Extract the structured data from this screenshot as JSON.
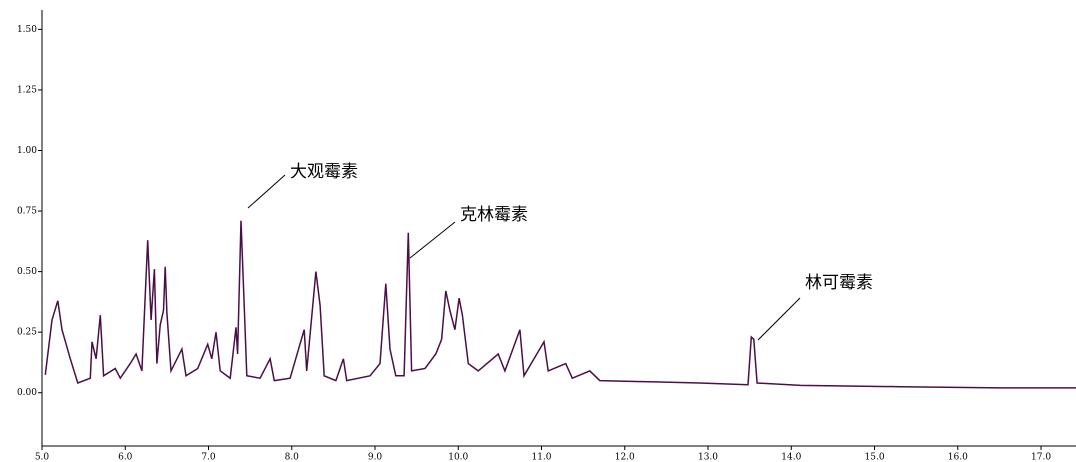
{
  "chart_data": {
    "type": "line",
    "color": "#4a1046",
    "xlim": [
      5.0,
      17.42
    ],
    "ylim": [
      -0.22,
      1.58
    ],
    "xticks": [
      {
        "value": 5,
        "label": "5.0"
      },
      {
        "value": 6,
        "label": "6.0"
      },
      {
        "value": 7,
        "label": "7.0"
      },
      {
        "value": 8,
        "label": "8.0"
      },
      {
        "value": 9,
        "label": "9.0"
      },
      {
        "value": 10,
        "label": "10.0"
      },
      {
        "value": 11,
        "label": "11.0"
      },
      {
        "value": 12,
        "label": "12.0"
      },
      {
        "value": 13,
        "label": "13.0"
      },
      {
        "value": 14,
        "label": "14.0"
      },
      {
        "value": 15,
        "label": "15.0"
      },
      {
        "value": 16,
        "label": "16.0"
      },
      {
        "value": 17,
        "label": "17.0"
      }
    ],
    "yticks": [
      {
        "value": 0,
        "label": "0.00"
      },
      {
        "value": 0.25,
        "label": "0.25"
      },
      {
        "value": 0.5,
        "label": "0.50"
      },
      {
        "value": 0.75,
        "label": "0.75"
      },
      {
        "value": 1,
        "label": "1.00"
      },
      {
        "value": 1.25,
        "label": "1.25"
      },
      {
        "value": 1.5,
        "label": "1.50"
      }
    ],
    "annotations": [
      "大观霉素",
      "克林霉素",
      "林可霉素"
    ],
    "x": [
      5.04,
      5.12,
      5.19,
      5.24,
      5.34,
      5.43,
      5.58,
      5.6,
      5.65,
      5.7,
      5.74,
      5.88,
      5.94,
      6.06,
      6.13,
      6.2,
      6.27,
      6.31,
      6.35,
      6.38,
      6.42,
      6.46,
      6.48,
      6.5,
      6.55,
      6.68,
      6.73,
      6.87,
      6.99,
      7.04,
      7.09,
      7.14,
      7.26,
      7.33,
      7.35,
      7.39,
      7.43,
      7.46,
      7.62,
      7.74,
      7.79,
      7.98,
      8.15,
      8.18,
      8.29,
      8.34,
      8.39,
      8.53,
      8.62,
      8.66,
      8.94,
      9.06,
      9.13,
      9.18,
      9.25,
      9.35,
      9.4,
      9.44,
      9.6,
      9.73,
      9.8,
      9.85,
      9.9,
      9.96,
      10.01,
      10.05,
      10.12,
      10.24,
      10.48,
      10.56,
      10.74,
      10.79,
      11.03,
      11.08,
      11.29,
      11.37,
      11.58,
      11.7,
      12.3,
      12.9,
      13.48,
      13.52,
      13.55,
      13.59,
      14.11,
      15.31,
      16.51,
      17.42
    ],
    "values": [
      0.074,
      0.3,
      0.38,
      0.26,
      0.14,
      0.04,
      0.06,
      0.21,
      0.14,
      0.32,
      0.07,
      0.1,
      0.06,
      0.12,
      0.16,
      0.09,
      0.63,
      0.3,
      0.51,
      0.12,
      0.28,
      0.34,
      0.52,
      0.33,
      0.09,
      0.18,
      0.07,
      0.1,
      0.2,
      0.14,
      0.25,
      0.09,
      0.06,
      0.27,
      0.16,
      0.71,
      0.35,
      0.07,
      0.06,
      0.14,
      0.05,
      0.06,
      0.26,
      0.09,
      0.5,
      0.36,
      0.07,
      0.05,
      0.14,
      0.05,
      0.07,
      0.12,
      0.45,
      0.18,
      0.07,
      0.07,
      0.66,
      0.09,
      0.1,
      0.16,
      0.22,
      0.42,
      0.34,
      0.26,
      0.39,
      0.32,
      0.12,
      0.09,
      0.16,
      0.09,
      0.26,
      0.07,
      0.21,
      0.09,
      0.12,
      0.06,
      0.09,
      0.05,
      0.045,
      0.04,
      0.033,
      0.23,
      0.22,
      0.04,
      0.03,
      0.025,
      0.02,
      0.02
    ]
  }
}
